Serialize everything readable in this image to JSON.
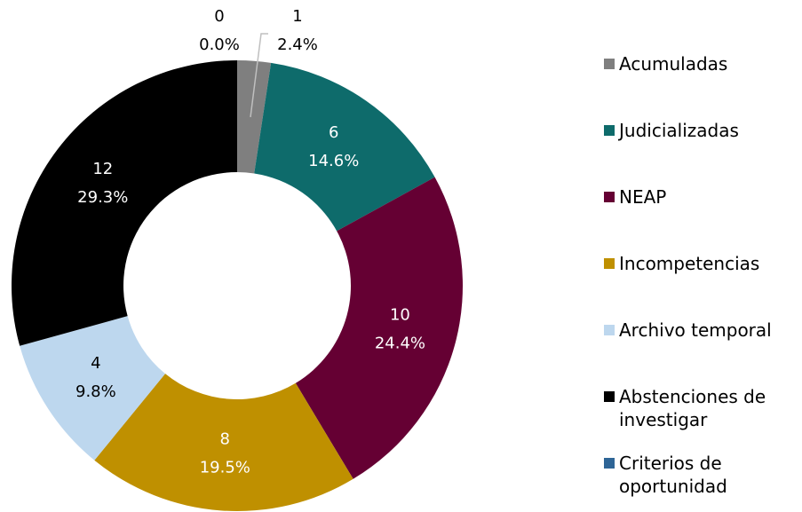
{
  "chart_data": {
    "type": "donut",
    "categories": [
      "Acumuladas",
      "Judicializadas",
      "NEAP",
      "Incompetencias",
      "Archivo temporal",
      "Abstenciones de investigar",
      "Criterios de oportunidad"
    ],
    "values": [
      1,
      6,
      10,
      8,
      4,
      12,
      0
    ],
    "shares": [
      2.4,
      14.6,
      24.4,
      19.5,
      9.8,
      29.3,
      0.0
    ],
    "share_labels": [
      "2.4%",
      "14.6%",
      "24.4%",
      "19.5%",
      "9.8%",
      "29.3%",
      "0.0%"
    ],
    "colors": [
      "#7f7f7f",
      "#0e6b6b",
      "#650033",
      "#bf9000",
      "#bdd7ee",
      "#000000",
      "#2e6596"
    ],
    "legend": "right"
  }
}
